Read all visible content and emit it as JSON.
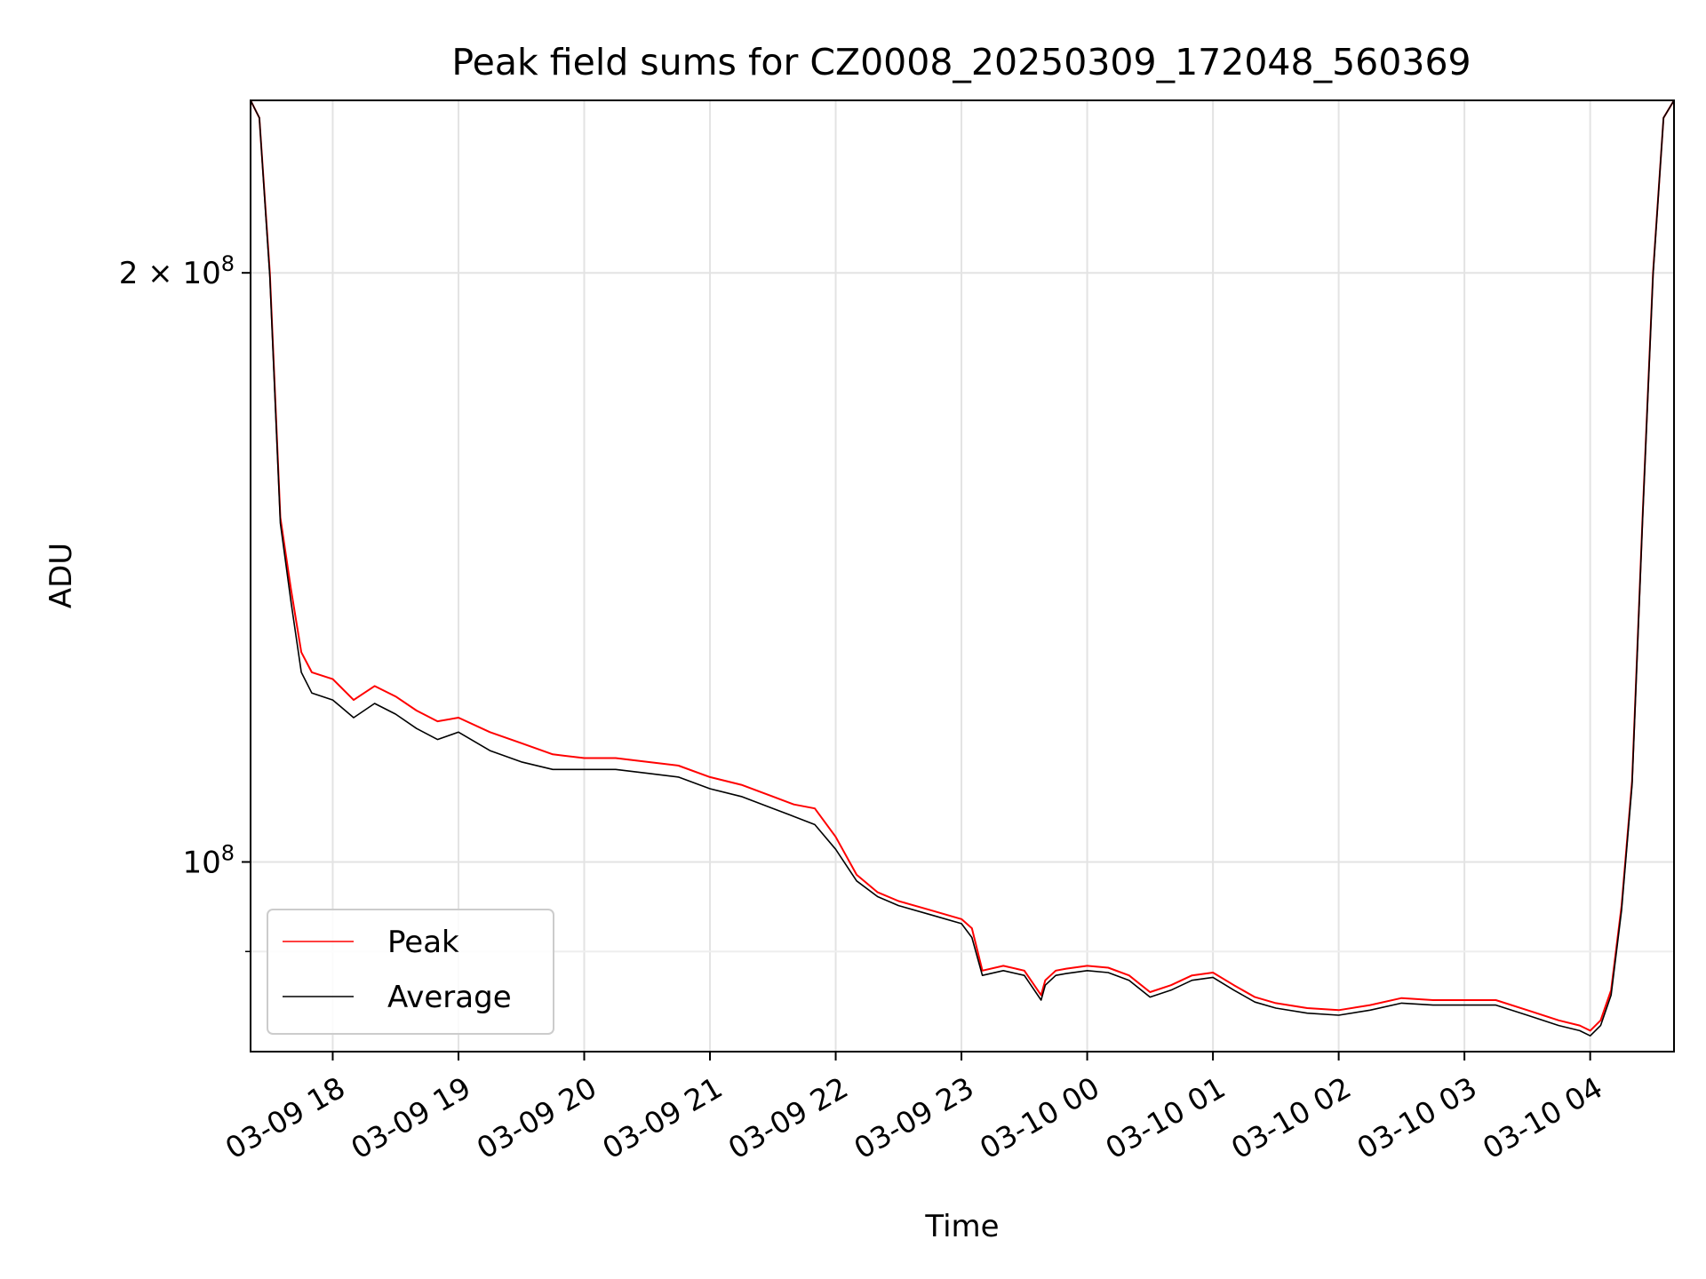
{
  "chart_data": {
    "type": "line",
    "title": "Peak field sums for CZ0008_20250309_172048_560369",
    "xlabel": "Time",
    "ylabel": "ADU",
    "y_scale": "log",
    "grid": true,
    "legend_position": "lower-left",
    "x_ticks": [
      "03-09 18",
      "03-09 19",
      "03-09 20",
      "03-09 21",
      "03-09 22",
      "03-09 23",
      "03-10 00",
      "03-10 01",
      "03-10 02",
      "03-10 03",
      "03-10 04"
    ],
    "x_tick_rotation": 30,
    "y_ticks_major": [
      {
        "value": 200000000,
        "base": "2 × 10",
        "exp": "8"
      },
      {
        "value": 100000000,
        "base": "10",
        "exp": "8"
      }
    ],
    "y_ticks_minor": [
      90000000
    ],
    "xlim": [
      "2025-03-09 17:20:48",
      "2025-03-10 04:40:00"
    ],
    "ylim": [
      80000000,
      245000000
    ],
    "x": [
      "2025-03-09 17:20:48",
      "2025-03-09 17:25",
      "2025-03-09 17:30",
      "2025-03-09 17:35",
      "2025-03-09 17:40",
      "2025-03-09 17:45",
      "2025-03-09 17:50",
      "2025-03-09 18:00",
      "2025-03-09 18:10",
      "2025-03-09 18:20",
      "2025-03-09 18:30",
      "2025-03-09 18:40",
      "2025-03-09 18:50",
      "2025-03-09 19:00",
      "2025-03-09 19:15",
      "2025-03-09 19:30",
      "2025-03-09 19:45",
      "2025-03-09 20:00",
      "2025-03-09 20:15",
      "2025-03-09 20:30",
      "2025-03-09 20:45",
      "2025-03-09 21:00",
      "2025-03-09 21:15",
      "2025-03-09 21:30",
      "2025-03-09 21:40",
      "2025-03-09 21:50",
      "2025-03-09 22:00",
      "2025-03-09 22:10",
      "2025-03-09 22:20",
      "2025-03-09 22:30",
      "2025-03-09 22:45",
      "2025-03-09 23:00",
      "2025-03-09 23:05",
      "2025-03-09 23:10",
      "2025-03-09 23:20",
      "2025-03-09 23:30",
      "2025-03-09 23:38",
      "2025-03-09 23:40",
      "2025-03-09 23:45",
      "2025-03-09 23:50",
      "2025-03-10 00:00",
      "2025-03-10 00:10",
      "2025-03-10 00:20",
      "2025-03-10 00:30",
      "2025-03-10 00:40",
      "2025-03-10 00:50",
      "2025-03-10 01:00",
      "2025-03-10 01:10",
      "2025-03-10 01:20",
      "2025-03-10 01:30",
      "2025-03-10 01:45",
      "2025-03-10 02:00",
      "2025-03-10 02:15",
      "2025-03-10 02:30",
      "2025-03-10 02:45",
      "2025-03-10 03:00",
      "2025-03-10 03:15",
      "2025-03-10 03:30",
      "2025-03-10 03:45",
      "2025-03-10 03:55",
      "2025-03-10 04:00",
      "2025-03-10 04:05",
      "2025-03-10 04:10",
      "2025-03-10 04:15",
      "2025-03-10 04:20",
      "2025-03-10 04:25",
      "2025-03-10 04:30",
      "2025-03-10 04:35",
      "2025-03-10 04:40"
    ],
    "series": [
      {
        "name": "Peak",
        "color": "#ff0000",
        "values": [
          245000000,
          240000000,
          200000000,
          150000000,
          138000000,
          128000000,
          125000000,
          124000000,
          121000000,
          123000000,
          121500000,
          119500000,
          118000000,
          118500000,
          116500000,
          115000000,
          113500000,
          113000000,
          113000000,
          112500000,
          112000000,
          110500000,
          109500000,
          108000000,
          107000000,
          106500000,
          103000000,
          98500000,
          96500000,
          95500000,
          94500000,
          93500000,
          92500000,
          88000000,
          88500000,
          88000000,
          85500000,
          87000000,
          88000000,
          88200000,
          88500000,
          88300000,
          87500000,
          85800000,
          86500000,
          87500000,
          87800000,
          86500000,
          85300000,
          84700000,
          84200000,
          84000000,
          84500000,
          85200000,
          85000000,
          85000000,
          85000000,
          84000000,
          83000000,
          82500000,
          82000000,
          83000000,
          86000000,
          95000000,
          110000000,
          150000000,
          200000000,
          240000000,
          245000000
        ]
      },
      {
        "name": "Average",
        "color": "#000000",
        "values": [
          245000000,
          240000000,
          199000000,
          149000000,
          136000000,
          125000000,
          122000000,
          121000000,
          118500000,
          120500000,
          119000000,
          117000000,
          115500000,
          116500000,
          114000000,
          112500000,
          111500000,
          111500000,
          111500000,
          111000000,
          110500000,
          109000000,
          108000000,
          106500000,
          105500000,
          104500000,
          101500000,
          97800000,
          96000000,
          95000000,
          94000000,
          93000000,
          91500000,
          87500000,
          88000000,
          87500000,
          85000000,
          86500000,
          87500000,
          87700000,
          88000000,
          87800000,
          87000000,
          85300000,
          86000000,
          87000000,
          87300000,
          86000000,
          84800000,
          84200000,
          83700000,
          83500000,
          84000000,
          84700000,
          84500000,
          84500000,
          84500000,
          83500000,
          82500000,
          82000000,
          81500000,
          82500000,
          85500000,
          94500000,
          109500000,
          149500000,
          199500000,
          240000000,
          245000000
        ]
      }
    ]
  }
}
